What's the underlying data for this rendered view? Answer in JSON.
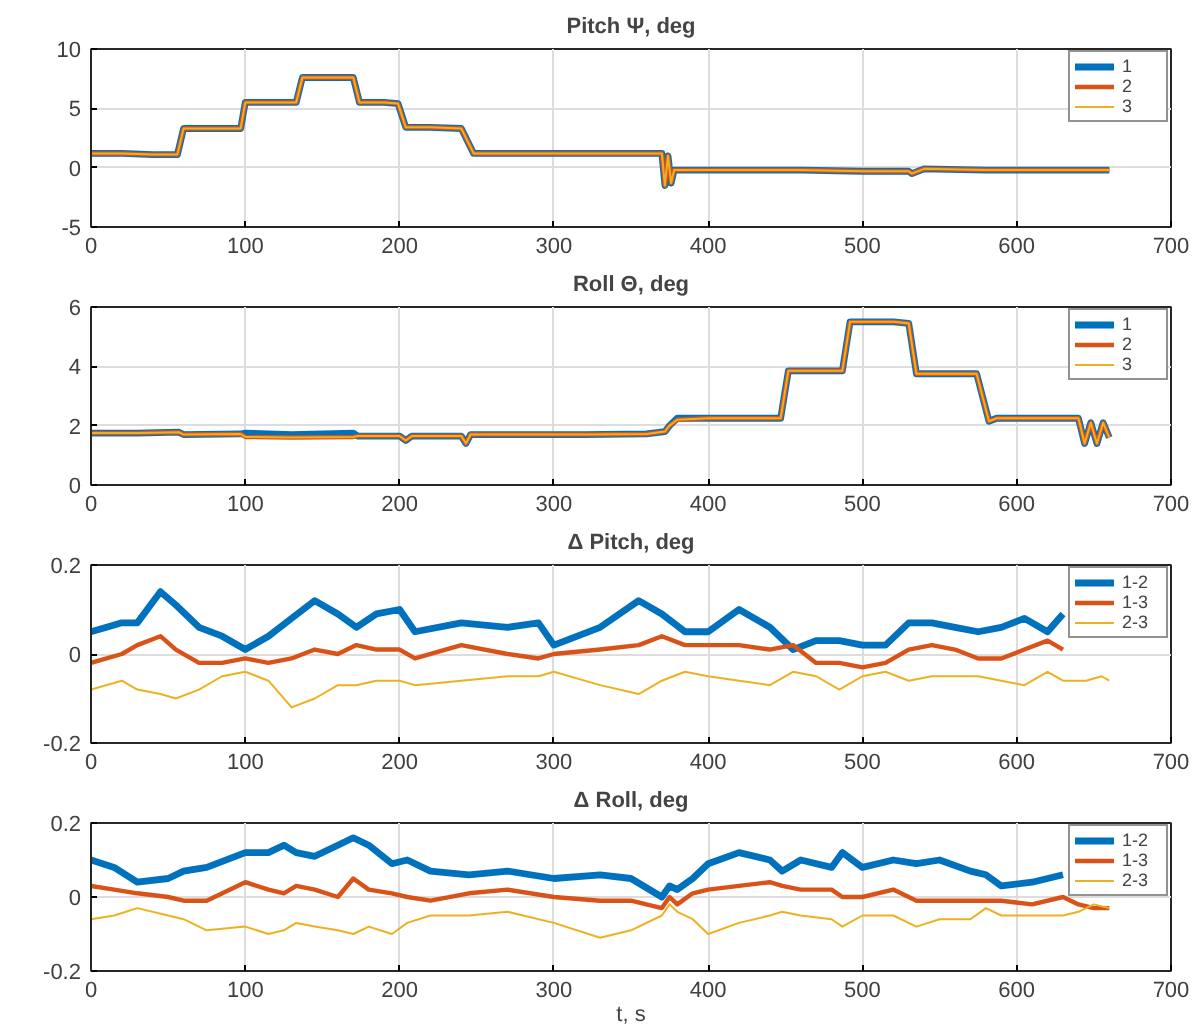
{
  "chart_data": [
    {
      "type": "line",
      "title": "Pitch Ψ, deg",
      "xlim": [
        0,
        700
      ],
      "xticks": [
        0,
        100,
        200,
        300,
        400,
        500,
        600,
        700
      ],
      "ylim": [
        -5,
        10
      ],
      "yticks": [
        -5,
        0,
        5,
        10
      ],
      "grid": true,
      "legend": "top right",
      "x": [
        0,
        20,
        40,
        56,
        60,
        80,
        97,
        100,
        120,
        133,
        137,
        155,
        170,
        174,
        190,
        199,
        204,
        220,
        240,
        248,
        280,
        320,
        360,
        370,
        372,
        374,
        376,
        378,
        385,
        420,
        460,
        500,
        530,
        532,
        540,
        580,
        620,
        660
      ],
      "series": [
        {
          "name": "1",
          "color": "#0072bd",
          "values": [
            1.2,
            1.2,
            1.1,
            1.1,
            3.3,
            3.3,
            3.3,
            5.5,
            5.5,
            5.5,
            7.6,
            7.6,
            7.6,
            5.5,
            5.5,
            5.4,
            3.4,
            3.4,
            3.3,
            1.2,
            1.2,
            1.2,
            1.2,
            1.2,
            -1.5,
            1.0,
            -1.3,
            -0.2,
            -0.2,
            -0.2,
            -0.2,
            -0.3,
            -0.3,
            -0.5,
            -0.1,
            -0.2,
            -0.2,
            -0.2
          ]
        },
        {
          "name": "2",
          "color": "#d95319",
          "values": [
            1.2,
            1.2,
            1.1,
            1.1,
            3.3,
            3.3,
            3.3,
            5.5,
            5.5,
            5.5,
            7.6,
            7.6,
            7.6,
            5.5,
            5.5,
            5.4,
            3.4,
            3.4,
            3.3,
            1.2,
            1.2,
            1.2,
            1.2,
            1.2,
            -1.5,
            1.0,
            -1.3,
            -0.2,
            -0.2,
            -0.2,
            -0.2,
            -0.3,
            -0.3,
            -0.5,
            -0.1,
            -0.2,
            -0.2,
            -0.2
          ]
        },
        {
          "name": "3",
          "color": "#edb120",
          "values": [
            1.2,
            1.2,
            1.1,
            1.1,
            3.3,
            3.3,
            3.3,
            5.5,
            5.5,
            5.5,
            7.6,
            7.6,
            7.6,
            5.5,
            5.5,
            5.4,
            3.4,
            3.4,
            3.3,
            1.2,
            1.2,
            1.2,
            1.2,
            1.2,
            -1.5,
            1.0,
            -1.3,
            -0.2,
            -0.2,
            -0.2,
            -0.2,
            -0.3,
            -0.3,
            -0.5,
            -0.1,
            -0.2,
            -0.2,
            -0.2
          ]
        }
      ]
    },
    {
      "type": "line",
      "title": "Roll Θ, deg",
      "xlim": [
        0,
        700
      ],
      "xticks": [
        0,
        100,
        200,
        300,
        400,
        500,
        600,
        700
      ],
      "ylim": [
        0,
        6
      ],
      "yticks": [
        0,
        2,
        4,
        6
      ],
      "grid": true,
      "legend": "top right",
      "x": [
        0,
        30,
        57,
        60,
        97,
        100,
        130,
        170,
        173,
        200,
        204,
        208,
        240,
        243,
        246,
        280,
        320,
        360,
        372,
        375,
        380,
        400,
        420,
        447,
        452,
        480,
        487,
        492,
        520,
        530,
        535,
        560,
        574,
        582,
        587,
        610,
        640,
        644,
        648,
        652,
        656,
        660
      ],
      "series": [
        {
          "name": "1",
          "color": "#0072bd",
          "values": [
            1.75,
            1.75,
            1.78,
            1.7,
            1.72,
            1.75,
            1.7,
            1.75,
            1.65,
            1.65,
            1.5,
            1.65,
            1.65,
            1.4,
            1.7,
            1.7,
            1.7,
            1.72,
            1.8,
            2.0,
            2.25,
            2.25,
            2.25,
            2.25,
            3.85,
            3.85,
            3.85,
            5.5,
            5.5,
            5.45,
            3.75,
            3.75,
            3.75,
            2.15,
            2.25,
            2.25,
            2.25,
            1.4,
            2.1,
            1.4,
            2.1,
            1.6
          ]
        },
        {
          "name": "2",
          "color": "#d95319",
          "values": [
            1.75,
            1.75,
            1.78,
            1.7,
            1.72,
            1.62,
            1.6,
            1.62,
            1.65,
            1.65,
            1.5,
            1.65,
            1.65,
            1.4,
            1.7,
            1.7,
            1.7,
            1.72,
            1.8,
            2.0,
            2.2,
            2.25,
            2.25,
            2.25,
            3.85,
            3.85,
            3.85,
            5.5,
            5.5,
            5.45,
            3.75,
            3.75,
            3.75,
            2.15,
            2.25,
            2.25,
            2.25,
            1.4,
            2.1,
            1.4,
            2.1,
            1.6
          ]
        },
        {
          "name": "3",
          "color": "#edb120",
          "values": [
            1.75,
            1.75,
            1.78,
            1.7,
            1.72,
            1.62,
            1.6,
            1.62,
            1.65,
            1.65,
            1.5,
            1.65,
            1.65,
            1.4,
            1.7,
            1.7,
            1.7,
            1.72,
            1.8,
            2.0,
            2.2,
            2.25,
            2.25,
            2.25,
            3.85,
            3.85,
            3.85,
            5.5,
            5.5,
            5.45,
            3.75,
            3.75,
            3.75,
            2.15,
            2.25,
            2.25,
            2.25,
            1.4,
            2.1,
            1.4,
            2.1,
            1.6
          ]
        }
      ]
    },
    {
      "type": "line",
      "title": "Δ Pitch, deg",
      "xlim": [
        0,
        700
      ],
      "xticks": [
        0,
        100,
        200,
        300,
        400,
        500,
        600,
        700
      ],
      "ylim": [
        -0.2,
        0.2
      ],
      "yticks": [
        -0.2,
        0,
        0.2
      ],
      "grid": true,
      "legend": "top right",
      "x": [
        0,
        20,
        30,
        45,
        55,
        70,
        85,
        100,
        115,
        130,
        145,
        160,
        172,
        185,
        200,
        210,
        240,
        270,
        290,
        300,
        330,
        355,
        370,
        385,
        400,
        420,
        440,
        455,
        470,
        485,
        500,
        515,
        530,
        545,
        560,
        575,
        590,
        605,
        620,
        630,
        645,
        655,
        660
      ],
      "series": [
        {
          "name": "1-2",
          "color": "#0072bd",
          "values": [
            0.05,
            0.07,
            0.07,
            0.14,
            0.11,
            0.06,
            0.04,
            0.01,
            0.04,
            0.08,
            0.12,
            0.09,
            0.06,
            0.09,
            0.1,
            0.05,
            0.07,
            0.06,
            0.07,
            0.02,
            0.06,
            0.12,
            0.09,
            0.05,
            0.05,
            0.1,
            0.06,
            0.01,
            0.03,
            0.03,
            0.02,
            0.02,
            0.07,
            0.07,
            0.06,
            0.05,
            0.06,
            0.08,
            0.05,
            0.09,
            null,
            null,
            null
          ]
        },
        {
          "name": "1-3",
          "color": "#d95319",
          "values": [
            -0.02,
            0.0,
            0.02,
            0.04,
            0.01,
            -0.02,
            -0.02,
            -0.01,
            -0.02,
            -0.01,
            0.01,
            0.0,
            0.02,
            0.01,
            0.01,
            -0.01,
            0.02,
            0.0,
            -0.01,
            0.0,
            0.01,
            0.02,
            0.04,
            0.02,
            0.02,
            0.02,
            0.01,
            0.02,
            -0.02,
            -0.02,
            -0.03,
            -0.02,
            0.01,
            0.02,
            0.01,
            -0.01,
            -0.01,
            0.01,
            0.03,
            0.01,
            null,
            null,
            null
          ]
        },
        {
          "name": "2-3",
          "color": "#edb120",
          "values": [
            -0.08,
            -0.06,
            -0.08,
            -0.09,
            -0.1,
            -0.08,
            -0.05,
            -0.04,
            -0.06,
            -0.12,
            -0.1,
            -0.07,
            -0.07,
            -0.06,
            -0.06,
            -0.07,
            -0.06,
            -0.05,
            -0.05,
            -0.04,
            -0.07,
            -0.09,
            -0.06,
            -0.04,
            -0.05,
            -0.06,
            -0.07,
            -0.04,
            -0.05,
            -0.08,
            -0.05,
            -0.04,
            -0.06,
            -0.05,
            -0.05,
            -0.05,
            -0.06,
            -0.07,
            -0.04,
            -0.06,
            -0.06,
            -0.05,
            -0.06
          ]
        }
      ]
    },
    {
      "type": "line",
      "title": "Δ Roll, deg",
      "xlabel": "t, s",
      "xlim": [
        0,
        700
      ],
      "xticks": [
        0,
        100,
        200,
        300,
        400,
        500,
        600,
        700
      ],
      "ylim": [
        -0.2,
        0.2
      ],
      "yticks": [
        -0.2,
        0,
        0.2
      ],
      "grid": true,
      "legend": "top right",
      "x": [
        0,
        15,
        30,
        50,
        60,
        75,
        100,
        115,
        125,
        133,
        145,
        160,
        170,
        180,
        195,
        205,
        220,
        245,
        270,
        300,
        330,
        350,
        370,
        375,
        380,
        390,
        400,
        420,
        440,
        448,
        460,
        480,
        487,
        500,
        520,
        535,
        550,
        570,
        580,
        590,
        610,
        630,
        640,
        650,
        660
      ],
      "series": [
        {
          "name": "1-2",
          "color": "#0072bd",
          "values": [
            0.1,
            0.08,
            0.04,
            0.05,
            0.07,
            0.08,
            0.12,
            0.12,
            0.14,
            0.12,
            0.11,
            0.14,
            0.16,
            0.14,
            0.09,
            0.1,
            0.07,
            0.06,
            0.07,
            0.05,
            0.06,
            0.05,
            0.0,
            0.03,
            0.02,
            0.05,
            0.09,
            0.12,
            0.1,
            0.07,
            0.1,
            0.08,
            0.12,
            0.08,
            0.1,
            0.09,
            0.1,
            0.07,
            0.06,
            0.03,
            0.04,
            0.06,
            null,
            null,
            null
          ]
        },
        {
          "name": "1-3",
          "color": "#d95319",
          "values": [
            0.03,
            0.02,
            0.01,
            0.0,
            -0.01,
            -0.01,
            0.04,
            0.02,
            0.01,
            0.03,
            0.02,
            0.0,
            0.05,
            0.02,
            0.01,
            0.0,
            -0.01,
            0.01,
            0.02,
            0.0,
            -0.01,
            -0.01,
            -0.03,
            0.0,
            -0.02,
            0.01,
            0.02,
            0.03,
            0.04,
            0.03,
            0.02,
            0.02,
            0.0,
            0.0,
            0.02,
            -0.01,
            -0.01,
            -0.01,
            -0.01,
            -0.01,
            -0.02,
            0.0,
            -0.02,
            -0.03,
            -0.03
          ]
        },
        {
          "name": "2-3",
          "color": "#edb120",
          "values": [
            -0.06,
            -0.05,
            -0.03,
            -0.05,
            -0.06,
            -0.09,
            -0.08,
            -0.1,
            -0.09,
            -0.07,
            -0.08,
            -0.09,
            -0.1,
            -0.08,
            -0.1,
            -0.07,
            -0.05,
            -0.05,
            -0.04,
            -0.07,
            -0.11,
            -0.09,
            -0.05,
            -0.02,
            -0.04,
            -0.06,
            -0.1,
            -0.07,
            -0.05,
            -0.04,
            -0.05,
            -0.06,
            -0.08,
            -0.05,
            -0.05,
            -0.08,
            -0.06,
            -0.06,
            -0.03,
            -0.05,
            -0.05,
            -0.05,
            -0.04,
            -0.02,
            -0.03
          ]
        }
      ]
    }
  ]
}
